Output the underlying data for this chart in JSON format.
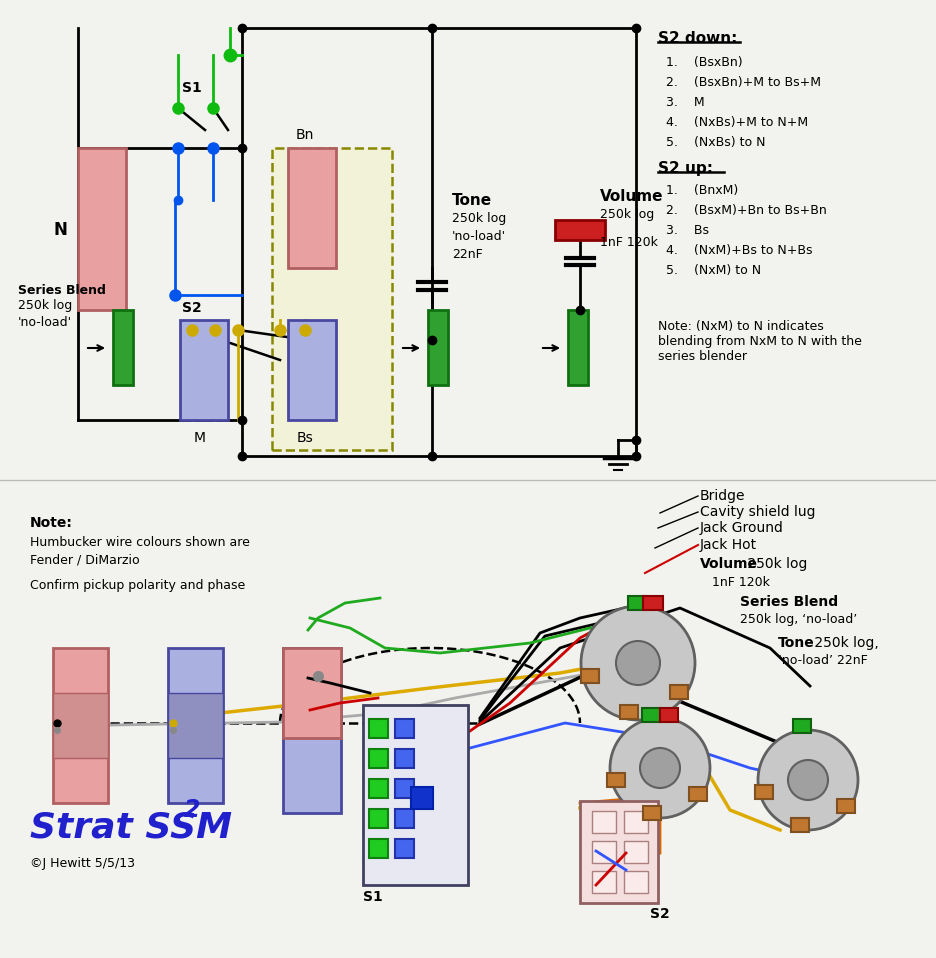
{
  "bg": "#f2f2ee",
  "s2_down_title": "S2 down:",
  "s2_down": [
    "(BsxBn)",
    "(BsxBn)+M to Bs+M",
    "M",
    "(NxBs)+M to N+M",
    "(NxBs) to N"
  ],
  "s2_up_title": "S2 up:",
  "s2_up": [
    "(BnxM)",
    "(BsxM)+Bn to Bs+Bn",
    "Bs",
    "(NxM)+Bs to N+Bs",
    "(NxM) to N"
  ],
  "note1": "Note: (NxM) to N indicates\nblending from NxM to N with the\nseries blender",
  "wire_labels": [
    "Bridge",
    "Cavity shield lug",
    "Jack Ground",
    "Jack Hot"
  ],
  "note2": "Note:",
  "note2a": "Humbucker wire colours shown are",
  "note2b": "Fender / DiMarzio",
  "note2c": "Confirm pickup polarity and phase",
  "title": "Strat SSM",
  "title_sup": "2",
  "copyright": "©J Hewitt 5/5/13",
  "pink": "#e8a0a0",
  "pink_ec": "#b06060",
  "blue_pu": "#aab0e0",
  "blue_ec": "#4848a0",
  "green_pot": "#30a030",
  "green_ec": "#107010",
  "orange_lug": "#c07830",
  "orange_ec": "#805020",
  "title_color": "#2020cc",
  "dashed_bg": "#f2f2d8",
  "pot_fc": "#c8c8c8",
  "pot_ec": "#606060",
  "hub_fc": "#a0a0a0"
}
